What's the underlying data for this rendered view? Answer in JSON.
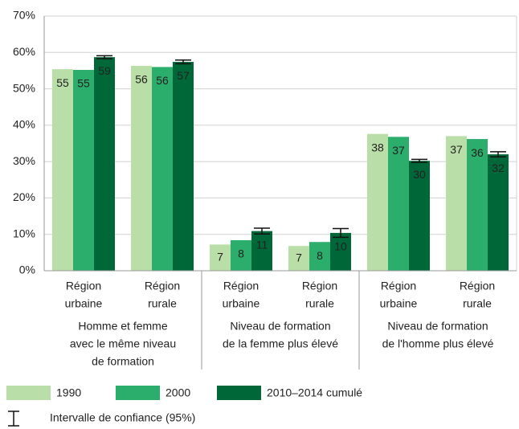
{
  "chart_data": {
    "type": "bar",
    "categories": [
      [
        "Région",
        "urbaine"
      ],
      [
        "Région",
        "rurale"
      ],
      [
        "Région",
        "urbaine"
      ],
      [
        "Région",
        "rurale"
      ],
      [
        "Région",
        "urbaine"
      ],
      [
        "Région",
        "rurale"
      ]
    ],
    "groups": [
      [
        "Homme et femme",
        "avec le même niveau",
        "de formation"
      ],
      [
        "Niveau de formation",
        "de la femme plus élevé"
      ],
      [
        "Niveau de formation",
        "de l'homme plus élevé"
      ]
    ],
    "series": [
      {
        "name": "1990",
        "color": "#b9dea8",
        "label_color": "#222222",
        "values": [
          55.4,
          56.3,
          7.2,
          6.8,
          37.6,
          37.0
        ],
        "value_labels": [
          "55",
          "56",
          "7",
          "7",
          "38",
          "37"
        ]
      },
      {
        "name": "2000",
        "color": "#2bad6b",
        "label_color": "#ffffff",
        "values": [
          55.2,
          56.0,
          8.4,
          7.9,
          36.8,
          36.2
        ],
        "value_labels": [
          "55",
          "56",
          "8",
          "8",
          "37",
          "36"
        ]
      },
      {
        "name": "2010–2014 cumulé",
        "color": "#006838",
        "label_color": "#ffffff",
        "values": [
          58.7,
          57.4,
          10.9,
          10.4,
          30.2,
          32.0
        ],
        "value_labels": [
          "59",
          "57",
          "11",
          "10",
          "30",
          "32"
        ],
        "errors": [
          0.4,
          0.5,
          0.8,
          1.2,
          0.4,
          0.7
        ]
      }
    ],
    "error_legend": "Intervalle de confiance (95%)",
    "ylim": [
      0,
      70
    ],
    "yticks": [
      {
        "value": 0,
        "label": "0%"
      },
      {
        "value": 10,
        "label": "10%"
      },
      {
        "value": 20,
        "label": "20%"
      },
      {
        "value": 30,
        "label": "30%"
      },
      {
        "value": 40,
        "label": "40%"
      },
      {
        "value": 50,
        "label": "50%"
      },
      {
        "value": 60,
        "label": "60%"
      },
      {
        "value": 70,
        "label": "70%"
      }
    ],
    "grid": true
  }
}
